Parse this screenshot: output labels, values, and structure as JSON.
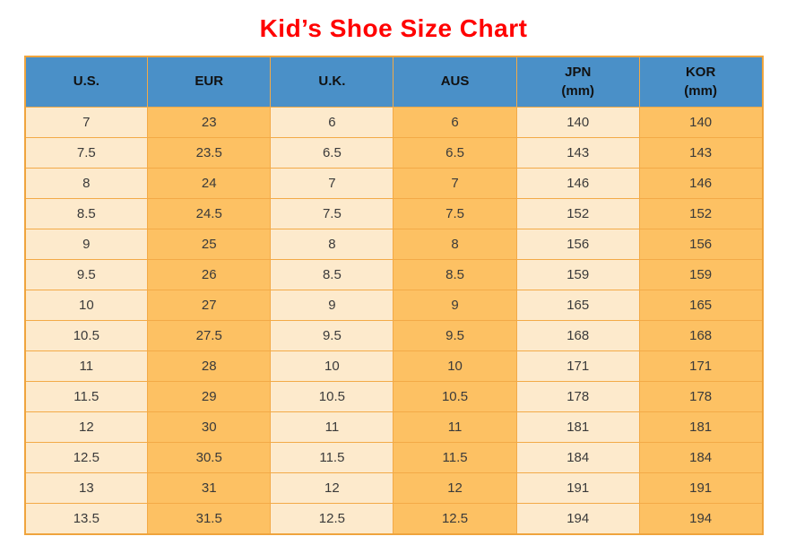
{
  "title": "Kid’s Shoe Size Chart",
  "colors": {
    "title_text": "#ff0000",
    "header_bg": "#4a90c8",
    "header_text": "#111111",
    "column_light_bg": "#fdeacc",
    "column_dark_bg": "#fdc163",
    "grid_border": "#f3aa47",
    "outer_border": "#efa43d",
    "cell_text": "#3a3a3a"
  },
  "chart_data": {
    "type": "table",
    "title": "Kid’s Shoe Size Chart",
    "legend_position": "none",
    "grid": true,
    "columns": [
      {
        "label": "U.S.",
        "sub": ""
      },
      {
        "label": "EUR",
        "sub": ""
      },
      {
        "label": "U.K.",
        "sub": ""
      },
      {
        "label": "AUS",
        "sub": ""
      },
      {
        "label": "JPN",
        "sub": "(mm)"
      },
      {
        "label": "KOR",
        "sub": "(mm)"
      }
    ],
    "rows": [
      [
        7,
        23,
        6,
        6,
        140,
        140
      ],
      [
        7.5,
        23.5,
        6.5,
        6.5,
        143,
        143
      ],
      [
        8,
        24,
        7,
        7,
        146,
        146
      ],
      [
        8.5,
        24.5,
        7.5,
        7.5,
        152,
        152
      ],
      [
        9,
        25,
        8,
        8,
        156,
        156
      ],
      [
        9.5,
        26,
        8.5,
        8.5,
        159,
        159
      ],
      [
        10,
        27,
        9,
        9,
        165,
        165
      ],
      [
        10.5,
        27.5,
        9.5,
        9.5,
        168,
        168
      ],
      [
        11,
        28,
        10,
        10,
        171,
        171
      ],
      [
        11.5,
        29,
        10.5,
        10.5,
        178,
        178
      ],
      [
        12,
        30,
        11,
        11,
        181,
        181
      ],
      [
        12.5,
        30.5,
        11.5,
        11.5,
        184,
        184
      ],
      [
        13,
        31,
        12,
        12,
        191,
        191
      ],
      [
        13.5,
        31.5,
        12.5,
        12.5,
        194,
        194
      ]
    ]
  }
}
